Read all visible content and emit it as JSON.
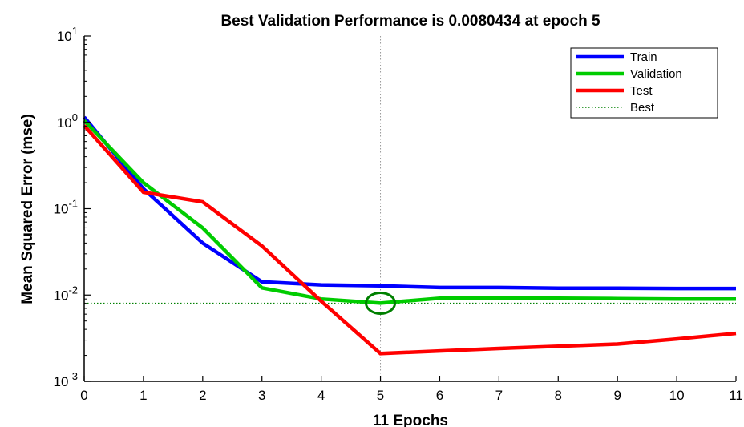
{
  "chart_data": {
    "type": "line",
    "title": "Best Validation Performance is 0.0080434 at epoch 5",
    "xlabel": "11 Epochs",
    "ylabel": "Mean Squared Error  (mse)",
    "xlim": [
      0,
      11
    ],
    "ylim": [
      0.001,
      10
    ],
    "yscale": "log",
    "grid": false,
    "legend_position": "top-right",
    "x_ticks": [
      0,
      1,
      2,
      3,
      4,
      5,
      6,
      7,
      8,
      9,
      10,
      11
    ],
    "x_tick_labels": [
      "0",
      "1",
      "2",
      "3",
      "4",
      "5",
      "6",
      "7",
      "8",
      "9",
      "10",
      "11"
    ],
    "y_ticks": [
      {
        "value": 0.001,
        "base": "10",
        "exp": "-3"
      },
      {
        "value": 0.01,
        "base": "10",
        "exp": "-2"
      },
      {
        "value": 0.1,
        "base": "10",
        "exp": "-1"
      },
      {
        "value": 1,
        "base": "10",
        "exp": "0"
      },
      {
        "value": 10,
        "base": "10",
        "exp": "1"
      }
    ],
    "x": [
      0,
      1,
      2,
      3,
      4,
      5,
      6,
      7,
      8,
      9,
      10,
      11
    ],
    "series": [
      {
        "name": "Train",
        "color": "#0000ff",
        "values": [
          1.15,
          0.17,
          0.04,
          0.0142,
          0.0131,
          0.0128,
          0.0122,
          0.0122,
          0.012,
          0.012,
          0.0119,
          0.0119
        ]
      },
      {
        "name": "Validation",
        "color": "#00cc00",
        "values": [
          1.05,
          0.2,
          0.06,
          0.0121,
          0.009,
          0.0080434,
          0.0092,
          0.0092,
          0.0092,
          0.0091,
          0.009,
          0.009
        ]
      },
      {
        "name": "Test",
        "color": "#ff0000",
        "values": [
          0.92,
          0.155,
          0.12,
          0.037,
          0.0085,
          0.0021,
          0.00225,
          0.0024,
          0.00255,
          0.0027,
          0.0031,
          0.0036
        ]
      }
    ],
    "best": {
      "name": "Best",
      "color": "#008000",
      "epoch": 5,
      "value": 0.0080434
    }
  }
}
